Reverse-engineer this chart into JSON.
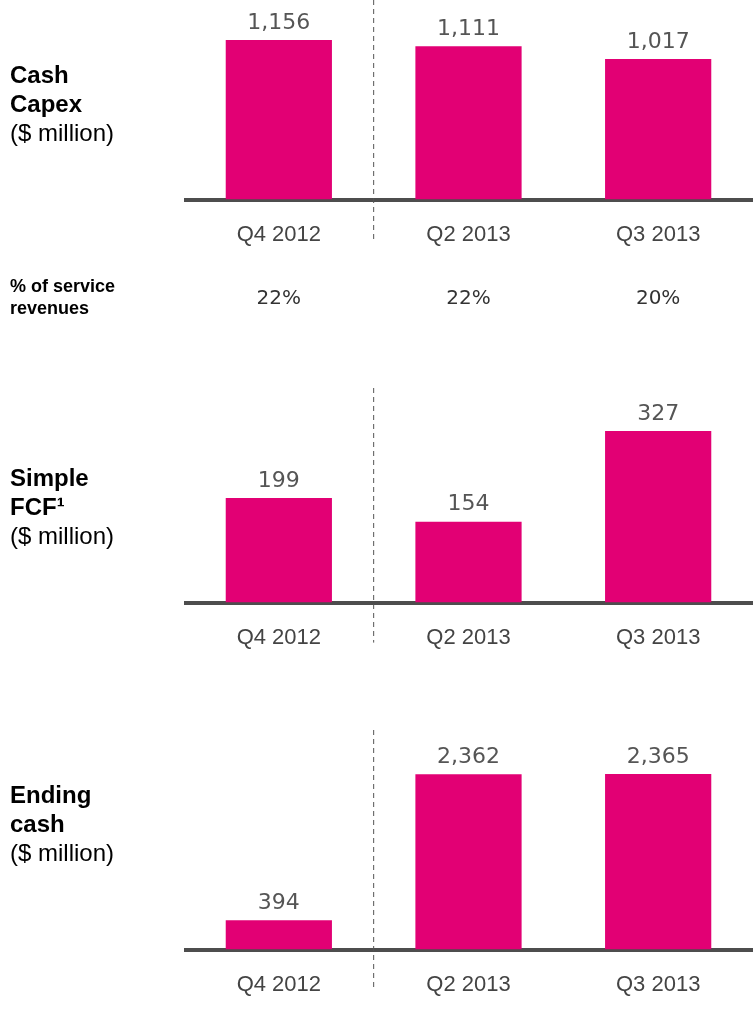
{
  "chart_data": [
    {
      "type": "bar",
      "title": "Cash Capex",
      "subtitle": "($ million)",
      "categories": [
        "Q4 2012",
        "Q2 2013",
        "Q3 2013"
      ],
      "values": [
        1156,
        1111,
        1017
      ],
      "value_labels": [
        "1,156",
        "1,111",
        "1,017"
      ],
      "color": "#e20074",
      "legend": false,
      "grid": false,
      "annotations": [
        "% of service revenues",
        "22%",
        "22%",
        "20%"
      ]
    },
    {
      "type": "bar",
      "title": "Simple FCF¹",
      "subtitle": "($ million)",
      "categories": [
        "Q4 2012",
        "Q2 2013",
        "Q3 2013"
      ],
      "values": [
        199,
        154,
        327
      ],
      "value_labels": [
        "199",
        "154",
        "327"
      ],
      "color": "#e20074",
      "legend": false,
      "grid": false
    },
    {
      "type": "bar",
      "title": "Ending cash",
      "subtitle": "($ million)",
      "categories": [
        "Q4 2012",
        "Q2 2013",
        "Q3 2013"
      ],
      "values": [
        394,
        2362,
        2365
      ],
      "value_labels": [
        "394",
        "2,362",
        "2,365"
      ],
      "color": "#e20074",
      "legend": false,
      "grid": false
    }
  ]
}
